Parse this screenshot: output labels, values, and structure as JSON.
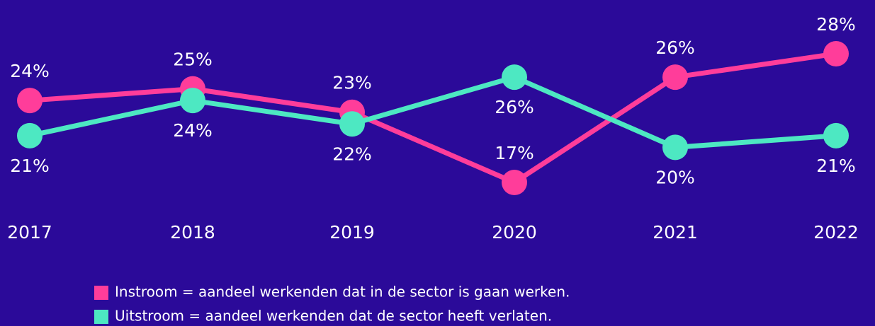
{
  "chart_data": {
    "type": "line",
    "categories": [
      "2017",
      "2018",
      "2019",
      "2020",
      "2021",
      "2022"
    ],
    "series": [
      {
        "name": "Instroom = aandeel werkenden dat in de sector is gaan werken.",
        "color": "#ff3d9a",
        "values": [
          24,
          25,
          23,
          17,
          26,
          28
        ],
        "value_labels": [
          "24%",
          "25%",
          "23%",
          "17%",
          "26%",
          "28%"
        ]
      },
      {
        "name": "Uitstroom = aandeel werkenden dat de sector heeft verlaten.",
        "color": "#4de8c2",
        "values": [
          21,
          24,
          22,
          26,
          20,
          21
        ],
        "value_labels": [
          "21%",
          "24%",
          "22%",
          "26%",
          "20%",
          "21%"
        ]
      }
    ]
  }
}
